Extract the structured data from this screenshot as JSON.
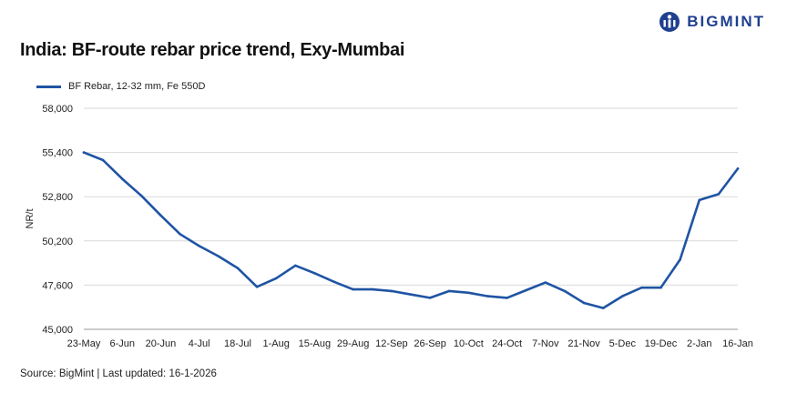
{
  "brand": {
    "name": "BIGMINT",
    "color": "#1f3f8f"
  },
  "footer": "Source: BigMint | Last updated: 16-1-2026",
  "chart_data": {
    "type": "line",
    "title": "India: BF-route rebar price trend, Exy-Mumbai",
    "ylabel": "NR/t",
    "xlabel": "",
    "ylim": [
      45000,
      58000
    ],
    "yticks": [
      45000,
      47600,
      50200,
      52800,
      55400,
      58000
    ],
    "ytick_labels": [
      "45,000",
      "47,600",
      "50,200",
      "52,800",
      "55,400",
      "58,000"
    ],
    "x_tick_labels": [
      "23-May",
      "6-Jun",
      "20-Jun",
      "4-Jul",
      "18-Jul",
      "1-Aug",
      "15-Aug",
      "29-Aug",
      "12-Sep",
      "26-Sep",
      "10-Oct",
      "24-Oct",
      "7-Nov",
      "21-Nov",
      "5-Dec",
      "19-Dec",
      "2-Jan",
      "16-Jan"
    ],
    "grid": true,
    "legend_position": "top-left",
    "series": [
      {
        "name": "BF Rebar, 12-32 mm, Fe 550D",
        "color": "#1f54a3",
        "x": [
          "23-May",
          "30-May",
          "6-Jun",
          "13-Jun",
          "20-Jun",
          "27-Jun",
          "4-Jul",
          "11-Jul",
          "18-Jul",
          "25-Jul",
          "1-Aug",
          "8-Aug",
          "15-Aug",
          "22-Aug",
          "29-Aug",
          "5-Sep",
          "12-Sep",
          "19-Sep",
          "26-Sep",
          "3-Oct",
          "10-Oct",
          "17-Oct",
          "24-Oct",
          "31-Oct",
          "7-Nov",
          "14-Nov",
          "21-Nov",
          "28-Nov",
          "5-Dec",
          "12-Dec",
          "19-Dec",
          "26-Dec",
          "2-Jan",
          "9-Jan",
          "16-Jan"
        ],
        "values": [
          55400,
          54950,
          53850,
          52850,
          51700,
          50600,
          49900,
          49300,
          48600,
          47500,
          48000,
          48750,
          48300,
          47800,
          47350,
          47350,
          47250,
          47050,
          46850,
          47250,
          47150,
          46950,
          46850,
          47300,
          47750,
          47250,
          46550,
          46250,
          46950,
          47450,
          47450,
          49100,
          52600,
          52950,
          54450
        ]
      }
    ]
  }
}
